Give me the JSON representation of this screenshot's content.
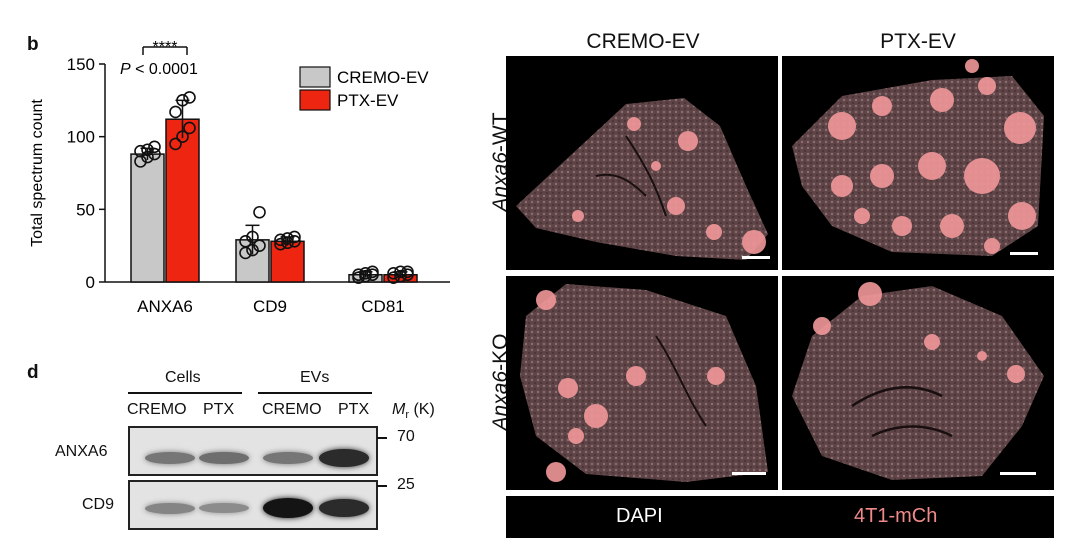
{
  "panel_b": {
    "letter": "b",
    "significance": "****",
    "p_value_prefix": "P",
    "p_value_rest": " < 0.0001"
  },
  "chart_data": {
    "type": "bar",
    "categories": [
      "ANXA6",
      "CD9",
      "CD81"
    ],
    "series": [
      {
        "name": "CREMO-EV",
        "values": [
          88,
          29,
          5
        ],
        "error": [
          4,
          10,
          2
        ],
        "color": "#c8c8c8",
        "points": [
          [
            83,
            86,
            88,
            90,
            91,
            93
          ],
          [
            20,
            22,
            25,
            28,
            31,
            48
          ],
          [
            3,
            4,
            5,
            5,
            6,
            7
          ]
        ]
      },
      {
        "name": "PTX-EV",
        "values": [
          112,
          28,
          5
        ],
        "error": [
          13,
          3,
          2
        ],
        "color": "#ee2511",
        "points": [
          [
            95,
            100,
            106,
            117,
            125,
            127
          ],
          [
            26,
            27,
            28,
            29,
            30,
            31
          ],
          [
            3,
            4,
            5,
            6,
            7,
            7
          ]
        ]
      }
    ],
    "ylabel": "Total spectrum count",
    "ylim": [
      0,
      150
    ],
    "yticks": [
      0,
      50,
      100,
      150
    ],
    "legend_position": "top-right"
  },
  "micrographs": {
    "columns": [
      "CREMO-EV",
      "PTX-EV"
    ],
    "rows": [
      {
        "gene": "Anxa6",
        "suffix": "-WT"
      },
      {
        "gene": "Anxa6",
        "suffix": "-KO"
      }
    ],
    "stain_left": "DAPI",
    "stain_right": "4T1-mCh",
    "stain_right_color": "#f08a8a",
    "tissue_color": "#6b4a4c",
    "tumor_color": "#f2989a"
  },
  "panel_d": {
    "letter": "d",
    "group_cells": "Cells",
    "group_evs": "EVs",
    "lanes": [
      "CREMO",
      "PTX",
      "CREMO",
      "PTX"
    ],
    "mr_label": "M",
    "mr_sub": "r",
    "mr_unit": " (K)",
    "rows": [
      {
        "protein": "ANXA6",
        "marker": "70",
        "intensities": [
          0.35,
          0.4,
          0.35,
          0.85
        ]
      },
      {
        "protein": "CD9",
        "marker": "25",
        "intensities": [
          0.25,
          0.2,
          1.0,
          0.85
        ]
      }
    ]
  }
}
